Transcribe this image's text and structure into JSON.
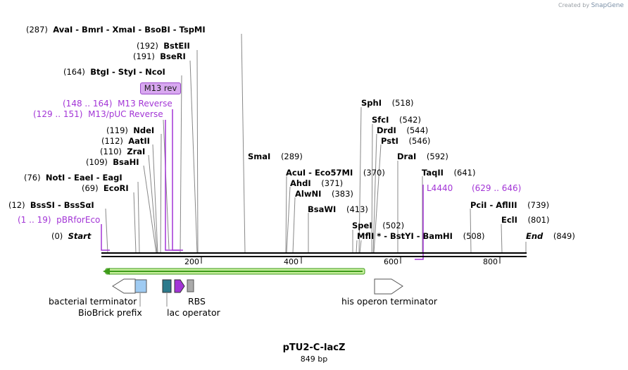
{
  "credit": {
    "prefix": "Created by",
    "brand": "SnapGene"
  },
  "title": "pTU2-C-lacZ",
  "length": "849 bp",
  "sites": {
    "s287": {
      "pos": "(287)",
      "names": "AvaI  -  BmrI  -  XmaI  -  BsoBI  -  TspMI"
    },
    "s192": {
      "pos": "(192)",
      "names": "BstEII"
    },
    "s191": {
      "pos": "(191)",
      "names": "BseRI"
    },
    "s164": {
      "pos": "(164)",
      "names": "BtgI  -  StyI  -  NcoI"
    },
    "s119": {
      "pos": "(119)",
      "names": "NdeI"
    },
    "s112": {
      "pos": "(112)",
      "names": "AatII"
    },
    "s110": {
      "pos": "(110)",
      "names": "ZraI"
    },
    "s109": {
      "pos": "(109)",
      "names": "BsaHI"
    },
    "s76": {
      "pos": "(76)",
      "names": "NotI  -  EaeI  -  EagI"
    },
    "s69": {
      "pos": "(69)",
      "names": "EcoRI"
    },
    "s12": {
      "pos": "(12)",
      "names": "BssSI  -  BssSαI"
    },
    "s0": {
      "pos": "(0)",
      "names": "Start"
    },
    "sma": {
      "pos": "(289)",
      "names": "SmaI"
    },
    "sph": {
      "pos": "(518)",
      "names": "SphI"
    },
    "sfc": {
      "pos": "(542)",
      "names": "SfcI"
    },
    "drd": {
      "pos": "(544)",
      "names": "DrdI"
    },
    "pst": {
      "pos": "(546)",
      "names": "PstI"
    },
    "dra": {
      "pos": "(592)",
      "names": "DraI"
    },
    "taq": {
      "pos": "(641)",
      "names": "TaqII"
    },
    "acu": {
      "pos": "(370)",
      "names": "AcuI  -  Eco57MI"
    },
    "ahd": {
      "pos": "(371)",
      "names": "AhdI"
    },
    "alw": {
      "pos": "(383)",
      "names": "AlwNI"
    },
    "bsa": {
      "pos": "(413)",
      "names": "BsaWI"
    },
    "spe": {
      "pos": "(502)",
      "names": "SpeI"
    },
    "mfl": {
      "pos": "(508)",
      "names": "MflI *  -  BstYI  -  BamHI"
    },
    "pci": {
      "pos": "(739)",
      "names": "PciI  -  AflIII"
    },
    "ecl": {
      "pos": "(801)",
      "names": "EclI"
    },
    "end": {
      "pos": "(849)",
      "names": "End"
    }
  },
  "primers": {
    "m13rev_box": "M13 rev",
    "m13reverse": {
      "range": "(148 .. 164)",
      "name": "M13 Reverse"
    },
    "m13puc": {
      "range": "(129 .. 151)",
      "name": "M13/pUC Reverse"
    },
    "pbr": {
      "range": "(1 .. 19)",
      "name": "pBRforEco"
    },
    "l4440": {
      "name": "L4440",
      "range": "(629 .. 646)"
    }
  },
  "ticks": [
    "200",
    "400",
    "600",
    "800"
  ],
  "features": {
    "bact_term": "bacterial terminator",
    "biobrick": "BioBrick prefix",
    "lac_op": "lac operator",
    "rbs": "RBS",
    "his_term": "his operon terminator"
  },
  "colors": {
    "purple": "#a335d6",
    "green": "#3d9b1a",
    "green_fill": "#c8ef9e",
    "biobrick": "#9fcbf2",
    "lacop": "#2c7a8c",
    "rbs": "#a335d6"
  }
}
